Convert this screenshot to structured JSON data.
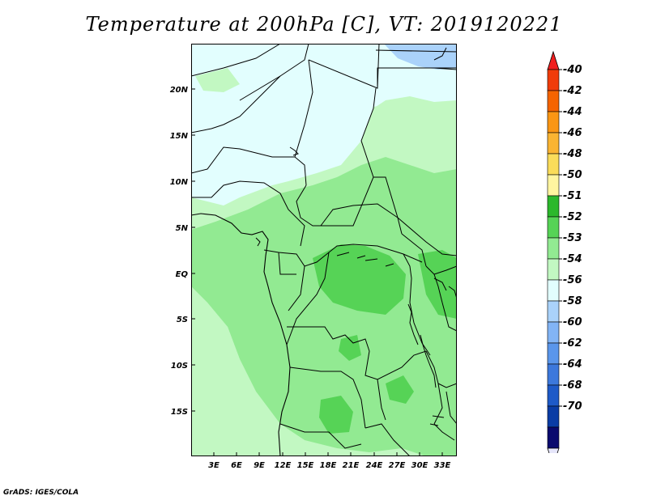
{
  "title": "Temperature at 200hPa [C], VT: 2019120221",
  "credit": "GrADS: IGES/COLA",
  "map": {
    "lat_ticks": [
      "20N",
      "15N",
      "10N",
      "5N",
      "EQ",
      "5S",
      "10S",
      "15S"
    ],
    "lon_ticks": [
      "3E",
      "6E",
      "9E",
      "12E",
      "15E",
      "18E",
      "21E",
      "24E",
      "27E",
      "30E",
      "33E"
    ]
  },
  "colorbar": {
    "labels": [
      "-40",
      "-42",
      "-44",
      "-46",
      "-48",
      "-50",
      "-51",
      "-52",
      "-53",
      "-54",
      "-56",
      "-58",
      "-60",
      "-62",
      "-64",
      "-68",
      "-70"
    ],
    "colors": [
      "#f01e1e",
      "#f03c0a",
      "#f56400",
      "#fa9614",
      "#fab432",
      "#fadc5a",
      "#fff5a0",
      "#2cb82c",
      "#56d356",
      "#92ea92",
      "#c2f8c2",
      "#e2fefe",
      "#aad2fa",
      "#82b4f5",
      "#5a96eb",
      "#3c78dc",
      "#1e5ac8",
      "#0a3ca5",
      "#0a0a6e",
      "#e6e6fa"
    ]
  },
  "field_colors": {
    "lightest_cyan": "#e2fefe",
    "light_blue": "#aad2fa",
    "pale_green": "#c2f8c2",
    "light_green": "#92ea92",
    "medium_green": "#56d356"
  }
}
